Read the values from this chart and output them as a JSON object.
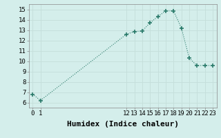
{
  "x": [
    0,
    1,
    12,
    13,
    14,
    15,
    16,
    17,
    18,
    19,
    20,
    21,
    22,
    23
  ],
  "y": [
    6.8,
    6.2,
    12.6,
    12.85,
    12.9,
    13.7,
    14.3,
    14.85,
    14.85,
    13.2,
    10.3,
    9.55,
    9.6,
    9.55
  ],
  "line_color": "#2a7a6a",
  "marker": "+",
  "marker_size": 4,
  "marker_linewidth": 1.2,
  "background_color": "#d4eeeb",
  "grid_color_major": "#c4deda",
  "grid_color_minor": "#dcecea",
  "xlabel": "Humidex (Indice chaleur)",
  "xlabel_fontsize": 8,
  "ylim": [
    5.5,
    15.5
  ],
  "xlim": [
    -0.5,
    23.5
  ],
  "yticks": [
    6,
    7,
    8,
    9,
    10,
    11,
    12,
    13,
    14,
    15
  ],
  "xticks": [
    0,
    1,
    12,
    13,
    14,
    15,
    16,
    17,
    18,
    19,
    20,
    21,
    22,
    23
  ],
  "tick_fontsize": 6.5
}
